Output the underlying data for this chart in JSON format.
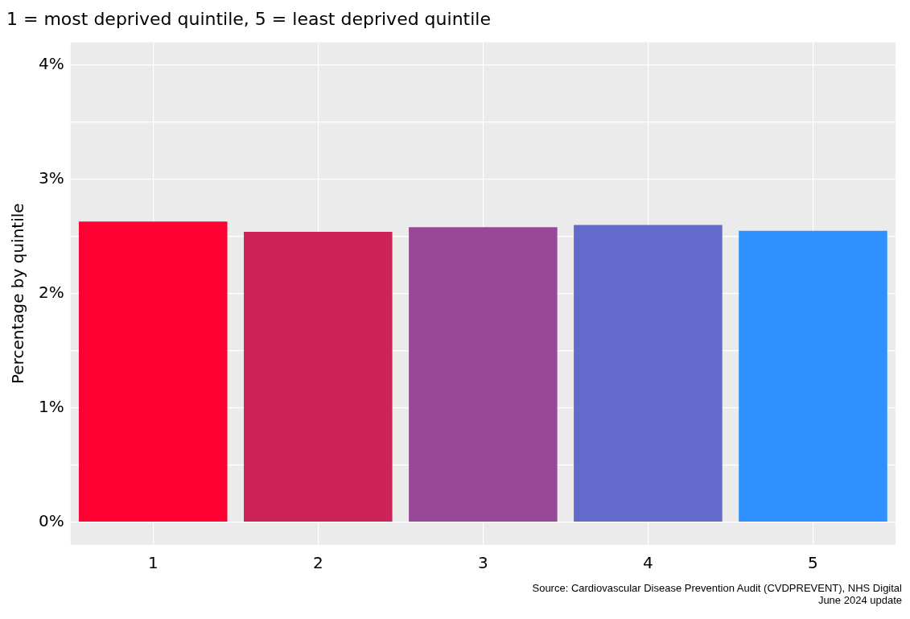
{
  "chart_data": {
    "type": "bar",
    "title": "1 = most deprived quintile, 5 = least deprived quintile",
    "ylabel": "Percentage by quintile",
    "categories": [
      "1",
      "2",
      "3",
      "4",
      "5"
    ],
    "values": [
      2.63,
      2.54,
      2.58,
      2.6,
      2.55
    ],
    "colors": [
      "#ff0033",
      "#cc2359",
      "#974896",
      "#626bcb",
      "#2f91ff"
    ],
    "ylim": [
      -0.2,
      4.2
    ],
    "yticks": [
      {
        "value": 0,
        "label": "0%"
      },
      {
        "value": 0.5,
        "label": null
      },
      {
        "value": 1,
        "label": "1%"
      },
      {
        "value": 1.5,
        "label": null
      },
      {
        "value": 2,
        "label": "2%"
      },
      {
        "value": 2.5,
        "label": null
      },
      {
        "value": 3,
        "label": "3%"
      },
      {
        "value": 3.5,
        "label": null
      },
      {
        "value": 4,
        "label": "4%"
      }
    ],
    "grid": true,
    "legend": false,
    "annotations": [
      "Source: Cardiovascular Disease Prevention Audit (CVDPREVENT), NHS Digital",
      "June 2024 update"
    ]
  }
}
